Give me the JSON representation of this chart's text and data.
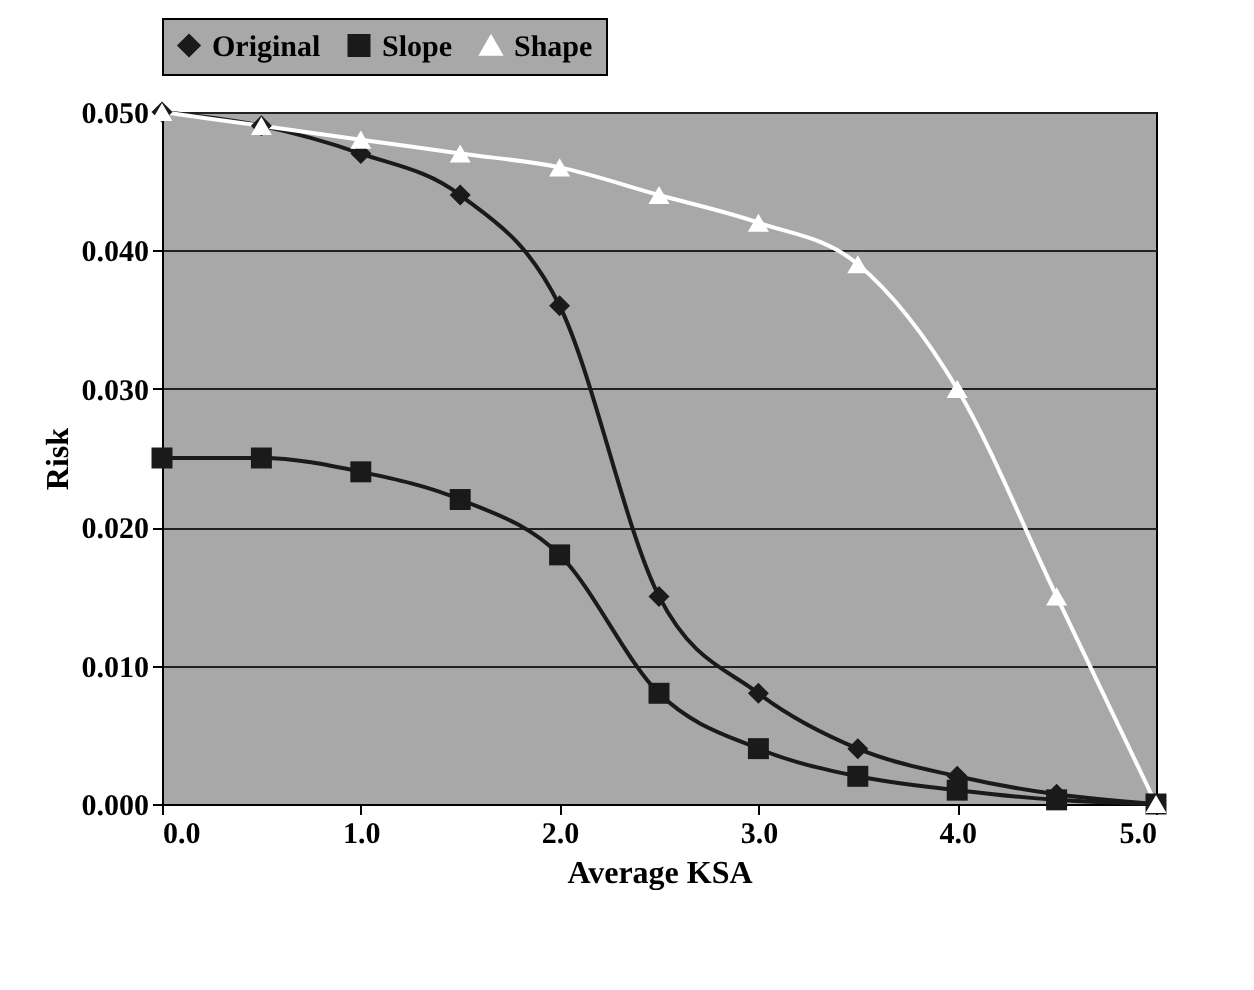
{
  "chart_data": {
    "type": "line",
    "xlabel": "Average KSA",
    "ylabel": "Risk",
    "x": [
      0.0,
      0.5,
      1.0,
      1.5,
      2.0,
      2.5,
      3.0,
      3.5,
      4.0,
      4.5,
      5.0
    ],
    "series": [
      {
        "name": "Original",
        "color": "#1a1a1a",
        "marker": "diamond",
        "values": [
          0.05,
          0.049,
          0.047,
          0.044,
          0.036,
          0.015,
          0.008,
          0.004,
          0.002,
          0.0007,
          0.0
        ]
      },
      {
        "name": "Slope",
        "color": "#1a1a1a",
        "marker": "square",
        "values": [
          0.025,
          0.025,
          0.024,
          0.022,
          0.018,
          0.008,
          0.004,
          0.002,
          0.001,
          0.0003,
          0.0
        ]
      },
      {
        "name": "Shape",
        "color": "#ffffff",
        "marker": "triangle",
        "values": [
          0.05,
          0.049,
          0.048,
          0.047,
          0.046,
          0.044,
          0.042,
          0.039,
          0.03,
          0.015,
          0.0
        ]
      }
    ],
    "xlim": [
      0,
      5
    ],
    "xticks": [
      {
        "value": 0,
        "label": "0.0"
      },
      {
        "value": 1,
        "label": "1.0"
      },
      {
        "value": 2,
        "label": "2.0"
      },
      {
        "value": 3,
        "label": "3.0"
      },
      {
        "value": 4,
        "label": "4.0"
      },
      {
        "value": 5,
        "label": "5.0"
      }
    ],
    "ylim": [
      0,
      0.05
    ],
    "yticks": [
      {
        "value": 0,
        "label": "0.000"
      },
      {
        "value": 0.01,
        "label": "0.010"
      },
      {
        "value": 0.02,
        "label": "0.020"
      },
      {
        "value": 0.03,
        "label": "0.030"
      },
      {
        "value": 0.04,
        "label": "0.040"
      },
      {
        "value": 0.05,
        "label": "0.050"
      }
    ],
    "grid": "y",
    "legend": "top",
    "line_style": "solid"
  }
}
